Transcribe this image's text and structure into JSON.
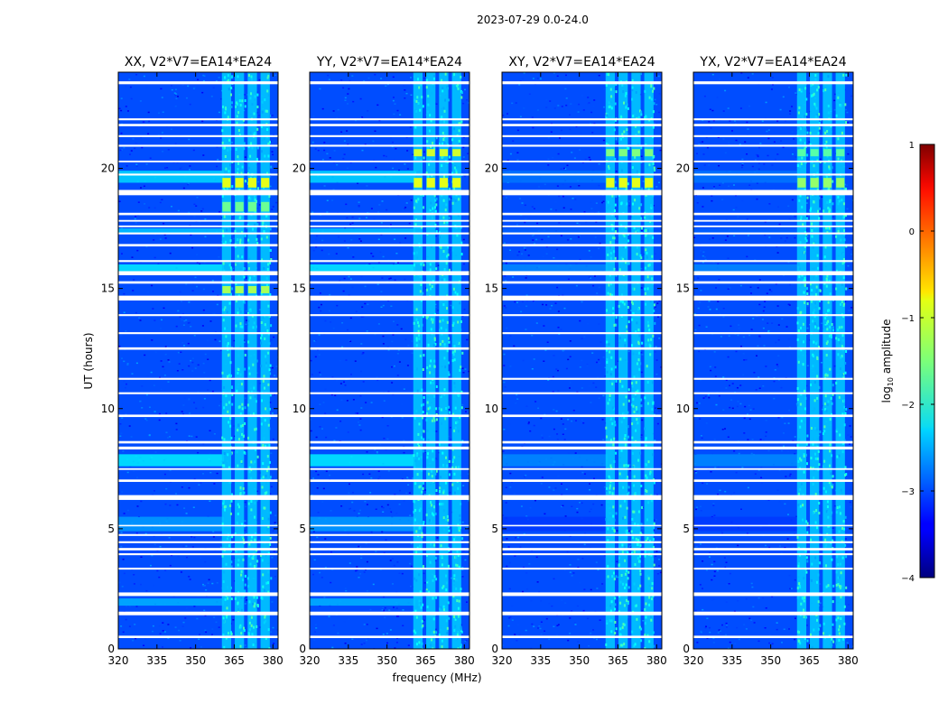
{
  "chart_data": {
    "type": "heatmap",
    "suptitle": "2023-07-29 0.0-24.0",
    "xlabel": "frequency (MHz)",
    "ylabel": "UT (hours)",
    "xlim": [
      320,
      382
    ],
    "ylim": [
      0,
      24
    ],
    "x_ticks": [
      320,
      335,
      350,
      365,
      380
    ],
    "y_ticks": [
      0,
      5,
      10,
      15,
      20
    ],
    "colorbar": {
      "label": "log",
      "label_sub": "10",
      "label_suffix": " amplitude",
      "min": -4,
      "max": 1,
      "ticks": [
        -4,
        -3,
        -2,
        -1,
        0,
        1
      ],
      "tick_labels": [
        "−4",
        "−3",
        "−2",
        "−1",
        "0",
        "1"
      ]
    },
    "noise_floor_log10_amplitude": -3.0,
    "rfi_band_mhz": [
      361,
      378
    ],
    "rfi_channel_centers_mhz": [
      362,
      367,
      372,
      377
    ],
    "panels": [
      {
        "title": "XX, V2*V7=EA14*EA24",
        "polarization": "XX",
        "bright_rfi_ut_hours": [
          [
            19.2,
            19.6,
            -1.0
          ],
          [
            18.2,
            18.6,
            -1.6
          ],
          [
            14.8,
            15.1,
            -1.3
          ]
        ]
      },
      {
        "title": "YY, V2*V7=EA14*EA24",
        "polarization": "YY",
        "bright_rfi_ut_hours": [
          [
            19.2,
            19.6,
            -1.0
          ],
          [
            20.5,
            20.8,
            -1.1
          ]
        ]
      },
      {
        "title": "XY, V2*V7=EA14*EA24",
        "polarization": "XY",
        "bright_rfi_ut_hours": [
          [
            19.2,
            19.6,
            -1.0
          ],
          [
            20.5,
            20.8,
            -1.5
          ]
        ]
      },
      {
        "title": "YX, V2*V7=EA14*EA24",
        "polarization": "YX",
        "bright_rfi_ut_hours": [
          [
            19.2,
            19.6,
            -1.4
          ],
          [
            20.5,
            20.8,
            -1.7
          ]
        ]
      }
    ],
    "flagged_ut_hours": [
      [
        0.45,
        0.55
      ],
      [
        1.4,
        1.55
      ],
      [
        2.2,
        2.35
      ],
      [
        3.3,
        3.38
      ],
      [
        3.9,
        3.98
      ],
      [
        4.1,
        4.2
      ],
      [
        4.4,
        4.48
      ],
      [
        4.7,
        4.78
      ],
      [
        5.1,
        5.16
      ],
      [
        6.2,
        6.4
      ],
      [
        6.95,
        7.05
      ],
      [
        7.45,
        7.52
      ],
      [
        8.3,
        8.42
      ],
      [
        8.55,
        8.65
      ],
      [
        9.65,
        9.75
      ],
      [
        10.6,
        10.68
      ],
      [
        11.2,
        11.28
      ],
      [
        12.45,
        12.55
      ],
      [
        13.1,
        13.18
      ],
      [
        13.85,
        13.93
      ],
      [
        14.5,
        14.7
      ],
      [
        15.2,
        15.3
      ],
      [
        15.55,
        15.72
      ],
      [
        16.1,
        16.18
      ],
      [
        16.75,
        16.85
      ],
      [
        17.25,
        17.33
      ],
      [
        17.55,
        17.62
      ],
      [
        17.78,
        17.85
      ],
      [
        18.05,
        18.15
      ],
      [
        18.88,
        19.1
      ],
      [
        19.7,
        19.78
      ],
      [
        20.25,
        20.32
      ],
      [
        20.9,
        20.98
      ],
      [
        21.3,
        21.38
      ],
      [
        21.75,
        21.85
      ],
      [
        22.0,
        22.08
      ],
      [
        23.5,
        23.62
      ]
    ],
    "enhanced_baseline_ut_hours": [
      [
        1.8,
        2.1,
        -2.5
      ],
      [
        4.9,
        5.5,
        -2.6
      ],
      [
        7.6,
        8.1,
        -2.2
      ],
      [
        15.6,
        16.0,
        -2.2
      ],
      [
        17.3,
        17.5,
        -2.4
      ],
      [
        19.4,
        19.9,
        -2.3
      ]
    ]
  }
}
